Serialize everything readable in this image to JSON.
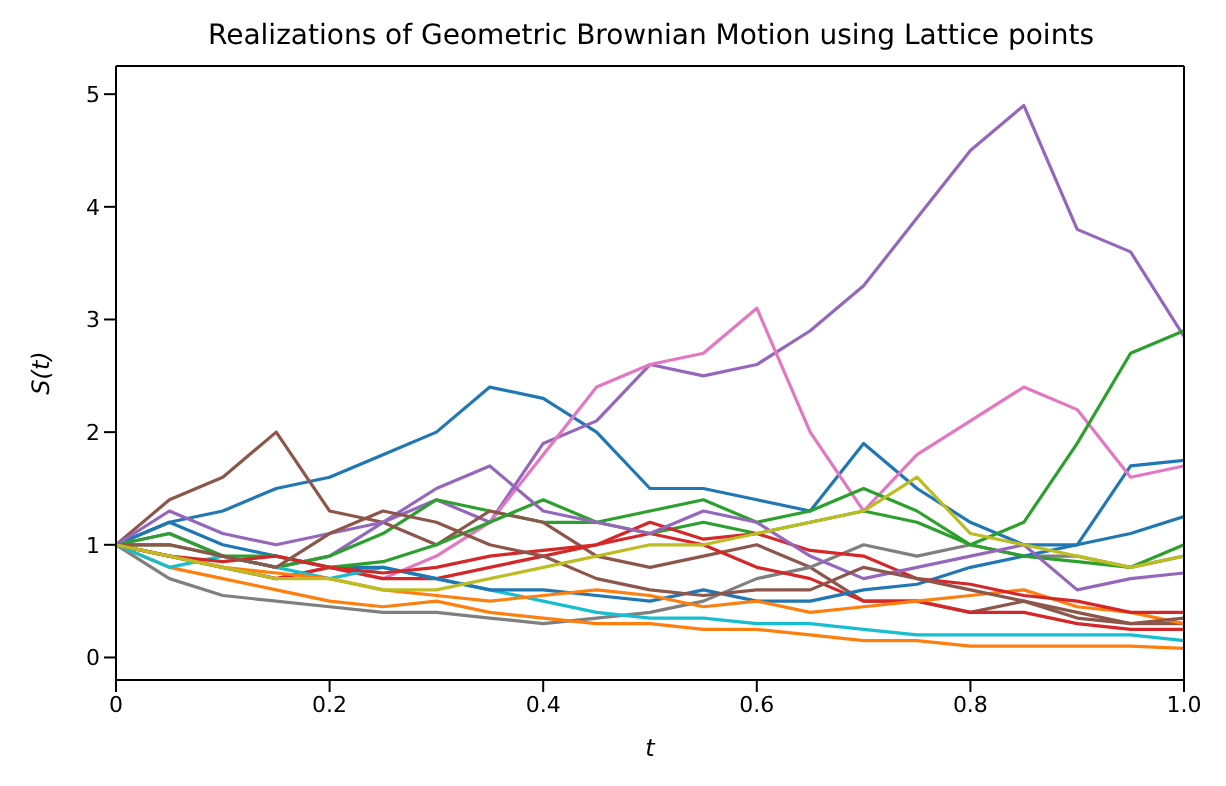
{
  "chart_data": {
    "type": "line",
    "title": "Realizations of Geometric Brownian Motion using Lattice points",
    "xlabel": "t",
    "ylabel": "S(t)",
    "x": [
      0,
      0.05,
      0.1,
      0.15,
      0.2,
      0.25,
      0.3,
      0.35,
      0.4,
      0.45,
      0.5,
      0.55,
      0.6,
      0.65,
      0.7,
      0.75,
      0.8,
      0.85,
      0.9,
      0.95,
      1.0
    ],
    "xlim": [
      0,
      1
    ],
    "xticks": [
      0,
      {
        "value": 0.2,
        "label": "0.2"
      },
      {
        "value": 0.4,
        "label": "0.4"
      },
      {
        "value": 0.6,
        "label": "0.6"
      },
      {
        "value": 0.8,
        "label": "0.8"
      },
      {
        "value": 1,
        "label": "1.0"
      }
    ],
    "ylim": [
      -0.2,
      5.25
    ],
    "yticks": [
      0,
      1,
      2,
      3,
      4,
      5
    ],
    "grid": false,
    "marker": "none",
    "line_style": "solid",
    "series": [
      {
        "color": "#1f77b4",
        "values": [
          1.0,
          1.2,
          1.3,
          1.5,
          1.6,
          1.8,
          2.0,
          2.4,
          2.3,
          2.0,
          1.5,
          1.5,
          1.4,
          1.3,
          1.9,
          1.5,
          1.2,
          1.0,
          1.0,
          1.7,
          1.75
        ]
      },
      {
        "color": "#9467bd",
        "values": [
          1.0,
          1.1,
          0.9,
          0.8,
          0.9,
          1.2,
          1.4,
          1.2,
          1.9,
          2.1,
          2.6,
          2.5,
          2.6,
          2.9,
          3.3,
          3.9,
          4.5,
          4.9,
          3.8,
          3.6,
          2.85
        ]
      },
      {
        "color": "#e377c2",
        "values": [
          1.0,
          0.9,
          0.8,
          0.7,
          0.8,
          0.7,
          0.9,
          1.2,
          1.8,
          2.4,
          2.6,
          2.7,
          3.1,
          2.0,
          1.3,
          1.8,
          2.1,
          2.4,
          2.2,
          1.6,
          1.7
        ]
      },
      {
        "color": "#2ca02c",
        "values": [
          1.0,
          1.0,
          0.9,
          0.8,
          0.9,
          1.1,
          1.4,
          1.3,
          1.2,
          1.2,
          1.3,
          1.4,
          1.2,
          1.3,
          1.5,
          1.3,
          1.0,
          1.2,
          1.9,
          2.7,
          2.9
        ]
      },
      {
        "color": "#8c564b",
        "values": [
          1.0,
          1.4,
          1.6,
          2.0,
          1.3,
          1.2,
          1.0,
          1.3,
          1.2,
          0.9,
          0.8,
          0.9,
          1.0,
          0.8,
          0.5,
          0.5,
          0.4,
          0.5,
          0.35,
          0.3,
          0.3
        ]
      },
      {
        "color": "#7f7f7f",
        "values": [
          1.0,
          0.7,
          0.55,
          0.5,
          0.45,
          0.4,
          0.4,
          0.35,
          0.3,
          0.35,
          0.4,
          0.5,
          0.7,
          0.8,
          1.0,
          0.9,
          1.0,
          0.9,
          0.9,
          0.8,
          0.9
        ]
      },
      {
        "color": "#d62728",
        "values": [
          1.0,
          0.9,
          0.8,
          0.7,
          0.8,
          0.7,
          0.7,
          0.8,
          0.9,
          1.0,
          1.1,
          1.0,
          0.8,
          0.7,
          0.5,
          0.5,
          0.4,
          0.4,
          0.3,
          0.25,
          0.25
        ]
      },
      {
        "color": "#ff7f0e",
        "values": [
          1.0,
          0.8,
          0.7,
          0.6,
          0.5,
          0.45,
          0.5,
          0.4,
          0.35,
          0.3,
          0.3,
          0.25,
          0.25,
          0.2,
          0.15,
          0.15,
          0.1,
          0.1,
          0.1,
          0.1,
          0.08
        ]
      },
      {
        "color": "#17becf",
        "values": [
          1.0,
          0.8,
          0.9,
          0.8,
          0.7,
          0.8,
          0.7,
          0.6,
          0.5,
          0.4,
          0.35,
          0.35,
          0.3,
          0.3,
          0.25,
          0.2,
          0.2,
          0.2,
          0.2,
          0.2,
          0.15
        ]
      },
      {
        "color": "#1f77b4",
        "values": [
          1.0,
          1.2,
          1.0,
          0.9,
          0.8,
          0.8,
          0.7,
          0.6,
          0.6,
          0.55,
          0.5,
          0.6,
          0.5,
          0.5,
          0.6,
          0.65,
          0.8,
          0.9,
          1.0,
          1.1,
          1.25
        ]
      },
      {
        "color": "#ff7f0e",
        "values": [
          1.0,
          0.9,
          0.8,
          0.75,
          0.7,
          0.6,
          0.55,
          0.5,
          0.55,
          0.6,
          0.55,
          0.45,
          0.5,
          0.4,
          0.45,
          0.5,
          0.55,
          0.6,
          0.45,
          0.4,
          0.3
        ]
      },
      {
        "color": "#2ca02c",
        "values": [
          1.0,
          1.1,
          0.9,
          0.9,
          0.8,
          0.85,
          1.0,
          1.2,
          1.4,
          1.2,
          1.1,
          1.2,
          1.1,
          1.2,
          1.3,
          1.2,
          1.0,
          0.9,
          0.85,
          0.8,
          1.0
        ]
      },
      {
        "color": "#d62728",
        "values": [
          1.0,
          0.9,
          0.85,
          0.9,
          0.8,
          0.75,
          0.8,
          0.9,
          0.95,
          1.0,
          1.2,
          1.05,
          1.1,
          0.95,
          0.9,
          0.7,
          0.65,
          0.55,
          0.5,
          0.4,
          0.4
        ]
      },
      {
        "color": "#9467bd",
        "values": [
          1.0,
          1.3,
          1.1,
          1.0,
          1.1,
          1.2,
          1.5,
          1.7,
          1.3,
          1.2,
          1.1,
          1.3,
          1.2,
          0.9,
          0.7,
          0.8,
          0.9,
          1.0,
          0.6,
          0.7,
          0.75
        ]
      },
      {
        "color": "#8c564b",
        "values": [
          1.0,
          1.0,
          0.9,
          0.8,
          1.1,
          1.3,
          1.2,
          1.0,
          0.9,
          0.7,
          0.6,
          0.55,
          0.6,
          0.6,
          0.8,
          0.7,
          0.6,
          0.5,
          0.4,
          0.3,
          0.35
        ]
      },
      {
        "color": "#bcbd22",
        "values": [
          1.0,
          0.9,
          0.8,
          0.7,
          0.7,
          0.6,
          0.6,
          0.7,
          0.8,
          0.9,
          1.0,
          1.0,
          1.1,
          1.2,
          1.3,
          1.6,
          1.1,
          1.0,
          0.9,
          0.8,
          0.9
        ]
      }
    ]
  }
}
